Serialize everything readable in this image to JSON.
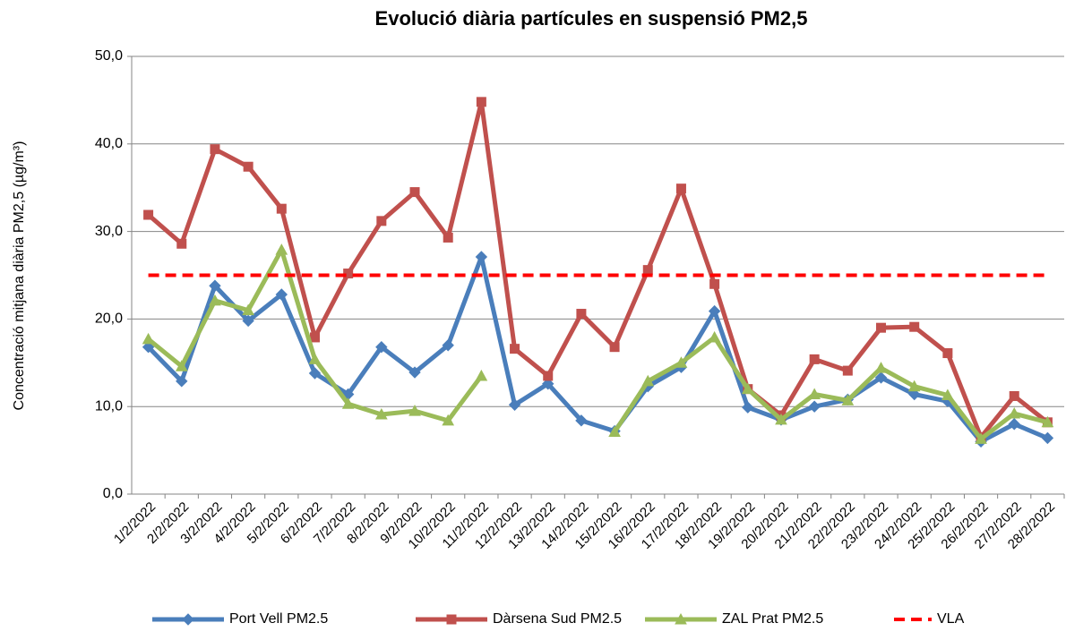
{
  "chart_data": {
    "type": "line",
    "title": "Evolució diària partícules en suspensió  PM2,5",
    "y_label": "Concentració mitjana diària PM2,5 (µg/m³)",
    "categories": [
      "1/2/2022",
      "2/2/2022",
      "3/2/2022",
      "4/2/2022",
      "5/2/2022",
      "6/2/2022",
      "7/2/2022",
      "8/2/2022",
      "9/2/2022",
      "10/2/2022",
      "11/2/2022",
      "12/2/2022",
      "13/2/2022",
      "14/2/2022",
      "15/2/2022",
      "16/2/2022",
      "17/2/2022",
      "18/2/2022",
      "19/2/2022",
      "20/2/2022",
      "21/2/2022",
      "22/2/2022",
      "23/2/2022",
      "24/2/2022",
      "25/2/2022",
      "26/2/2022",
      "27/2/2022",
      "28/2/2022"
    ],
    "series": [
      {
        "name": "Port Vell PM2.5",
        "color": "#4a7ebb",
        "marker": "diamond",
        "dash": false,
        "values": [
          16.8,
          12.9,
          23.8,
          19.8,
          22.8,
          13.8,
          11.4,
          16.8,
          13.9,
          17.0,
          27.1,
          10.2,
          12.6,
          8.4,
          7.2,
          12.3,
          14.5,
          20.9,
          9.9,
          8.5,
          10.0,
          10.8,
          13.3,
          11.4,
          10.6,
          6.0,
          8.0,
          6.4
        ]
      },
      {
        "name": "Dàrsena Sud PM2.5",
        "color": "#c0504d",
        "marker": "square",
        "dash": false,
        "values": [
          31.9,
          28.6,
          39.4,
          37.4,
          32.6,
          17.9,
          25.2,
          31.2,
          34.5,
          29.3,
          44.8,
          16.6,
          13.5,
          20.6,
          16.8,
          25.6,
          34.9,
          24.0,
          12.0,
          9.0,
          15.4,
          14.1,
          19.0,
          19.1,
          16.1,
          6.5,
          11.2,
          8.2
        ]
      },
      {
        "name": "ZAL Prat PM2.5",
        "color": "#9bbb59",
        "marker": "triangle",
        "dash": false,
        "values": [
          17.7,
          14.6,
          22.1,
          21.0,
          27.9,
          15.4,
          10.3,
          9.1,
          9.5,
          8.4,
          13.5,
          null,
          null,
          null,
          7.1,
          12.9,
          15.0,
          17.9,
          12.0,
          8.5,
          11.4,
          10.7,
          14.4,
          12.3,
          11.3,
          6.3,
          9.2,
          8.2
        ]
      },
      {
        "name": "VLA",
        "color": "#ff0000",
        "marker": "none",
        "dash": true,
        "values": [
          25,
          25,
          25,
          25,
          25,
          25,
          25,
          25,
          25,
          25,
          25,
          25,
          25,
          25,
          25,
          25,
          25,
          25,
          25,
          25,
          25,
          25,
          25,
          25,
          25,
          25,
          25,
          25
        ]
      }
    ],
    "ylim": [
      0,
      50
    ],
    "yticks": [
      {
        "value": 0,
        "label": "0,0"
      },
      {
        "value": 10,
        "label": "10,0"
      },
      {
        "value": 20,
        "label": "20,0"
      },
      {
        "value": 30,
        "label": "30,0"
      },
      {
        "value": 40,
        "label": "40,0"
      },
      {
        "value": 50,
        "label": "50,0"
      }
    ],
    "grid": true
  }
}
